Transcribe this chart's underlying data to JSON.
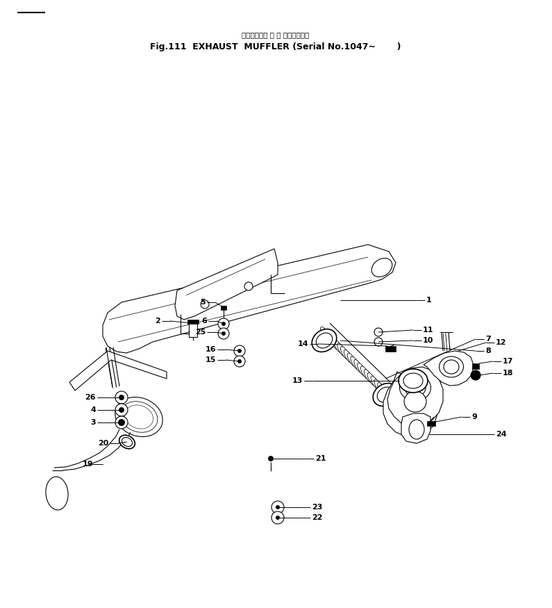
{
  "title_japanese": "エキゾースト マ フ ラ（適用号機",
  "title_english": "Fig.111  EXHAUST  MUFFLER (Serial No.1047∼       )",
  "bg_color": "#ffffff",
  "line_color": "#000000",
  "fig_width": 7.95,
  "fig_height": 8.75,
  "dpi": 100
}
